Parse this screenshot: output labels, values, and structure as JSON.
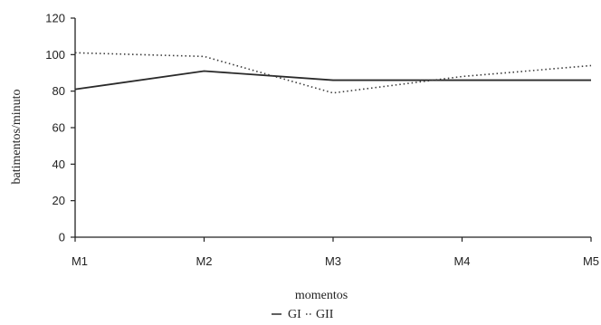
{
  "chart_data": {
    "type": "line",
    "title": "",
    "xlabel": "momentos",
    "ylabel": "batimentos/minuto",
    "categories": [
      "M1",
      "M2",
      "M3",
      "M4",
      "M5"
    ],
    "ylim": [
      0,
      120
    ],
    "yticks": [
      0,
      20,
      40,
      60,
      80,
      100,
      120
    ],
    "grid": false,
    "legend_position": "bottom",
    "legend_items": [
      "GI",
      "GII"
    ],
    "series": [
      {
        "name": "GI",
        "values": [
          81,
          91,
          86,
          86,
          86
        ],
        "style": "solid",
        "color": "#2a2a2a"
      },
      {
        "name": "GII",
        "values": [
          101,
          99,
          79,
          88,
          94
        ],
        "style": "dotted",
        "color": "#3a3a3a"
      }
    ]
  }
}
